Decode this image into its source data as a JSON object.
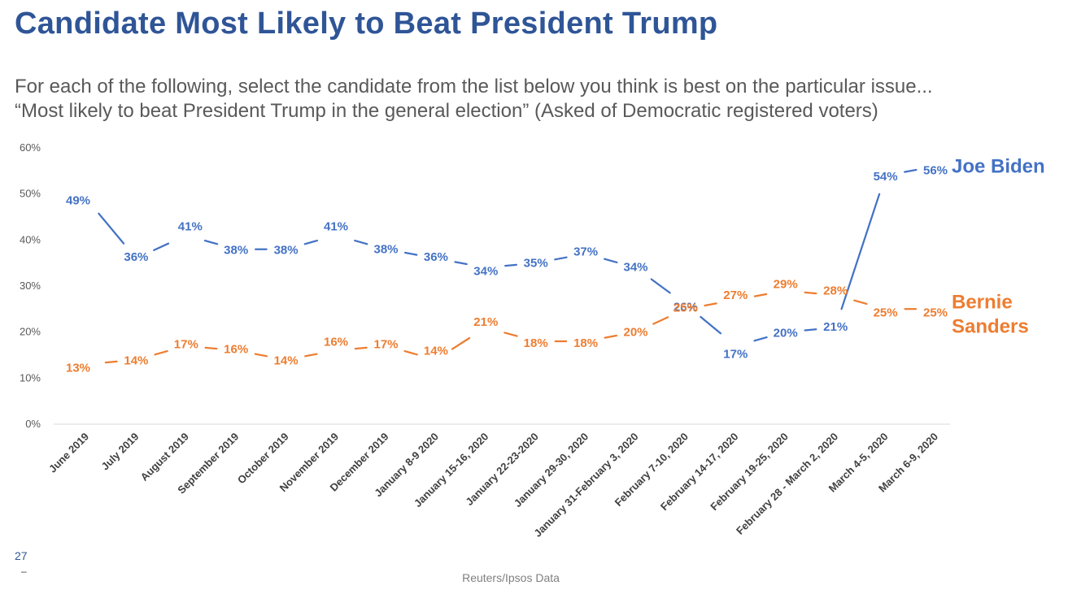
{
  "header": {
    "title": "Candidate Most Likely to Beat President Trump",
    "subtitle_line1": "For each of the following, select the candidate from the list below you think is best on the particular issue...",
    "subtitle_line2": "“Most likely to beat President Trump in the general election” (Asked of Democratic registered voters)"
  },
  "footer": {
    "page_number": "27",
    "dash": "–",
    "source": "Reuters/Ipsos Data"
  },
  "colors": {
    "title": "#2f5597",
    "biden": "#4472c4",
    "sanders": "#ed7d31",
    "axis": "#d9d9d9"
  },
  "chart_data": {
    "type": "line",
    "title": "Candidate Most Likely to Beat President Trump",
    "xlabel": "",
    "ylabel": "",
    "ylim": [
      0,
      60
    ],
    "yticks": [
      "0%",
      "10%",
      "20%",
      "30%",
      "40%",
      "50%",
      "60%"
    ],
    "grid": false,
    "legend": "direct labels at right end of lines",
    "categories": [
      "June 2019",
      "July 2019",
      "August 2019",
      "September 2019",
      "October 2019",
      "November 2019",
      "December 2019",
      "January 8-9 2020",
      "January 15-16, 2020",
      "January 22-23-2020",
      "January 29-30, 2020",
      "January 31-February 3, 2020",
      "February 7-10, 2020",
      "February 14-17, 2020",
      "February 19-25, 2020",
      "February 28 - March 2, 2020",
      "March 4-5, 2020",
      "March 6-9, 2020"
    ],
    "series": [
      {
        "name": "Joe Biden",
        "label_lines": [
          "Joe Biden"
        ],
        "color": "#4472c4",
        "values": [
          49,
          36,
          41,
          38,
          38,
          41,
          38,
          36,
          34,
          35,
          37,
          34,
          26,
          17,
          20,
          21,
          54,
          56
        ],
        "labels": [
          "49%",
          "36%",
          "41%",
          "38%",
          "38%",
          "41%",
          "38%",
          "36%",
          "34%",
          "35%",
          "37%",
          "34%",
          "26%",
          "17%",
          "20%",
          "21%",
          "54%",
          "56%"
        ]
      },
      {
        "name": "Bernie Sanders",
        "label_lines": [
          "Bernie",
          "Sanders"
        ],
        "color": "#ed7d31",
        "values": [
          13,
          14,
          17,
          16,
          14,
          16,
          17,
          14,
          21,
          18,
          18,
          20,
          25,
          27,
          29,
          28,
          25,
          25
        ],
        "labels": [
          "13%",
          "14%",
          "17%",
          "16%",
          "14%",
          "16%",
          "17%",
          "14%",
          "21%",
          "18%",
          "18%",
          "20%",
          "25%",
          "27%",
          "29%",
          "28%",
          "25%",
          "25%"
        ]
      }
    ]
  }
}
